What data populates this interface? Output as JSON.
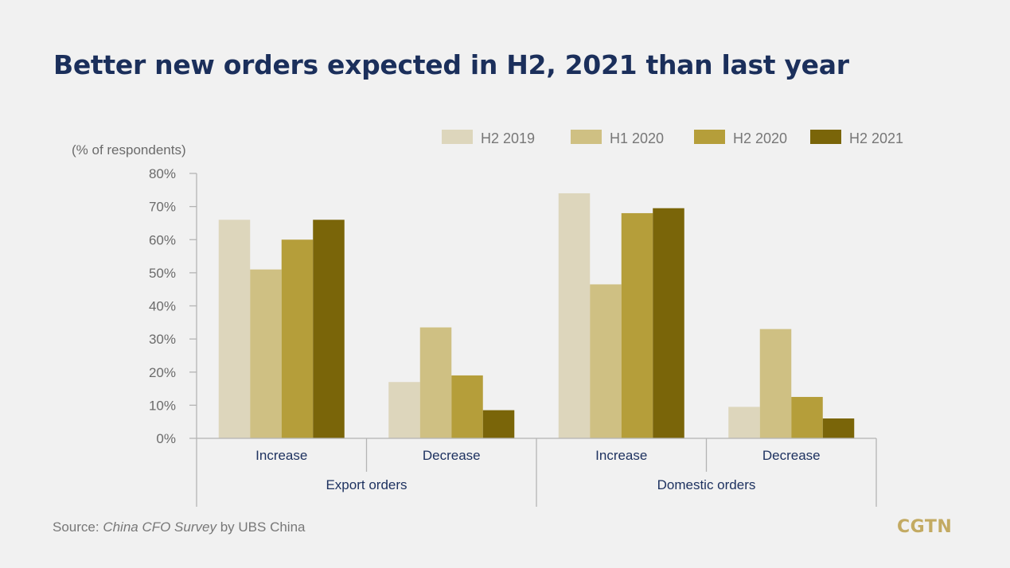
{
  "header": {
    "title": "Better new orders expected in H2, 2021 than last year"
  },
  "chart_data": {
    "type": "bar",
    "ylabel": "(% of respondents)",
    "ylim": [
      0,
      80
    ],
    "yticks": [
      "0%",
      "10%",
      "20%",
      "30%",
      "40%",
      "50%",
      "60%",
      "70%",
      "80%"
    ],
    "categories": [
      "Increase",
      "Decrease",
      "Increase",
      "Decrease"
    ],
    "groups": [
      "Export orders",
      "Domestic orders"
    ],
    "legend_position": "top-right",
    "series": [
      {
        "name": "H2 2019",
        "color": "#ddd6bc",
        "values": [
          66,
          17,
          74,
          9.5
        ]
      },
      {
        "name": "H1 2020",
        "color": "#cfc083",
        "values": [
          51,
          33.5,
          46.5,
          33
        ]
      },
      {
        "name": "H2 2020",
        "color": "#b59e3a",
        "values": [
          60,
          19,
          68,
          12.5
        ]
      },
      {
        "name": "H2 2021",
        "color": "#7a6509",
        "values": [
          66,
          8.5,
          69.5,
          6
        ]
      }
    ]
  },
  "footer": {
    "source_prefix": "Source: ",
    "source_title": "China CFO Survey",
    "source_suffix": " by UBS China",
    "logo": "CGTN"
  }
}
